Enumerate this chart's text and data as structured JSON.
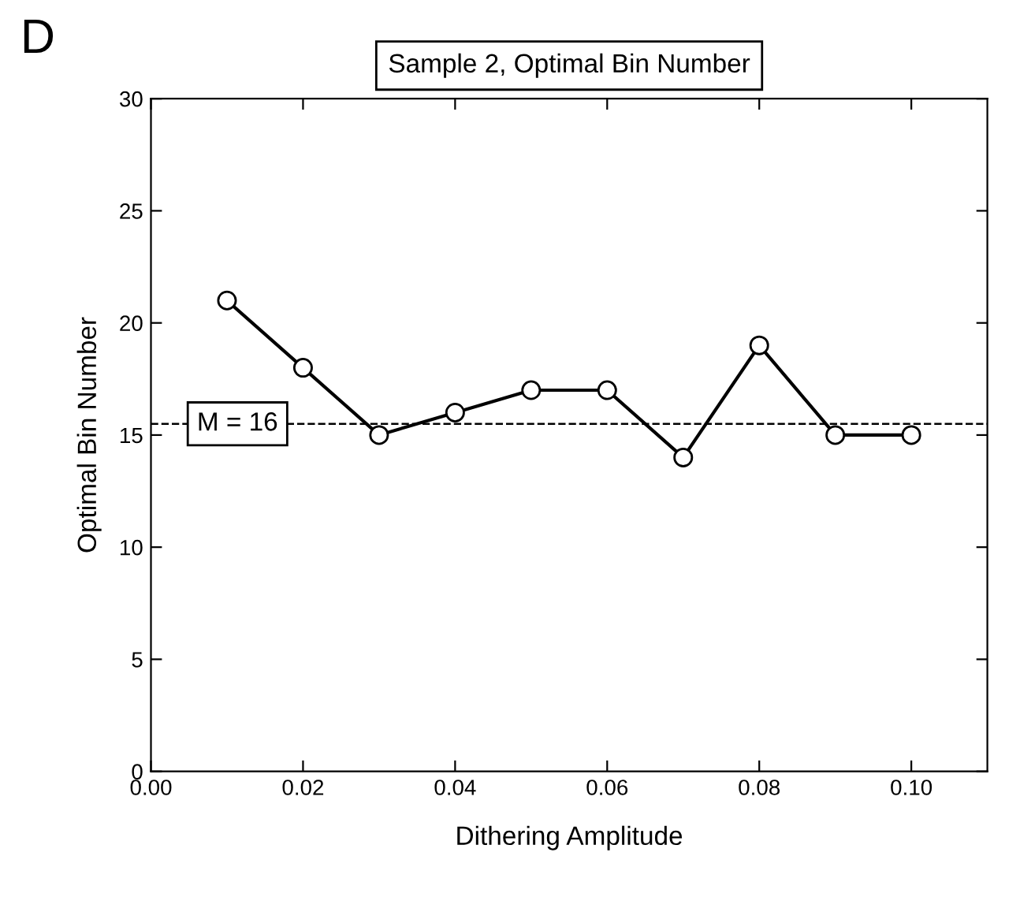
{
  "chart_data": {
    "type": "line",
    "title": "Sample 2, Optimal Bin Number",
    "xlabel": "Dithering Amplitude",
    "ylabel": "Optimal Bin Number",
    "annotations": [
      "D"
    ],
    "x": [
      0.01,
      0.02,
      0.03,
      0.04,
      0.05,
      0.06,
      0.07,
      0.08,
      0.09,
      0.1
    ],
    "series": [
      {
        "color": "#000000",
        "values": [
          21,
          18,
          15,
          16,
          17,
          17,
          14,
          19,
          15,
          15
        ]
      }
    ],
    "xlim": [
      0,
      0.11
    ],
    "xticks": [
      {
        "value": 0,
        "label": "0.00"
      },
      {
        "value": 0.02,
        "label": "0.02"
      },
      {
        "value": 0.04,
        "label": "0.04"
      },
      {
        "value": 0.06,
        "label": "0.06"
      },
      {
        "value": 0.08,
        "label": "0.08"
      },
      {
        "value": 0.1,
        "label": "0.10"
      }
    ],
    "ylim": [
      0,
      30
    ],
    "yticks": [
      0,
      5,
      10,
      15,
      20,
      25,
      30
    ],
    "ref_lines": [
      {
        "axis": "y",
        "value": 15.5,
        "label": "M = 16",
        "line_style": "dashed"
      }
    ],
    "marker": "circle",
    "line_style": "solid",
    "grid": false,
    "legend": false
  }
}
